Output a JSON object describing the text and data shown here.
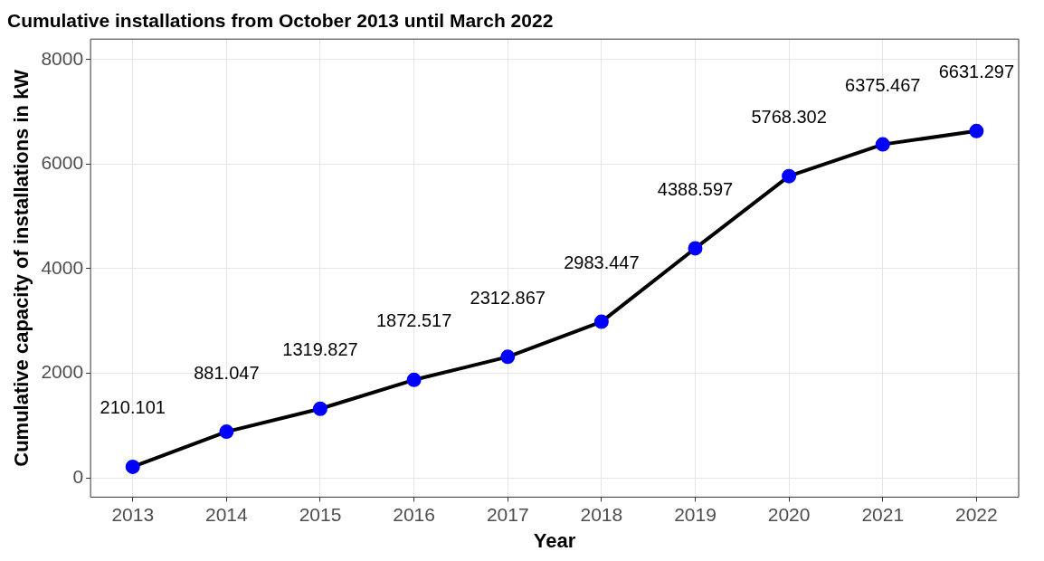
{
  "chart_data": {
    "type": "line",
    "title": "Cumulative installations from October 2013 until March 2022",
    "xlabel": "Year",
    "ylabel": "Cumulative capacity of installations in kW",
    "x": [
      2013,
      2014,
      2015,
      2016,
      2017,
      2018,
      2019,
      2020,
      2021,
      2022
    ],
    "series": [
      {
        "color": "#000000",
        "colors": [
          "#0000ff",
          "#0000ff",
          "#0000ff",
          "#0000ff",
          "#0000ff",
          "#0000ff",
          "#0000ff",
          "#0000ff",
          "#0000ff",
          "#0000ff"
        ],
        "values": [
          210.101,
          881.047,
          1319.827,
          1872.517,
          2312.867,
          2983.447,
          4388.597,
          5768.302,
          6375.467,
          6631.297
        ]
      }
    ],
    "xlim": [
      2012.55,
      2022.45
    ],
    "xticks": [
      2013,
      2014,
      2015,
      2016,
      2017,
      2018,
      2019,
      2020,
      2021,
      2022
    ],
    "ylim": [
      -370,
      8390
    ],
    "yticks": [
      0,
      2000,
      4000,
      6000,
      8000
    ],
    "grid": true,
    "marker": "circle",
    "line_style": "solid",
    "data_labels": true
  }
}
